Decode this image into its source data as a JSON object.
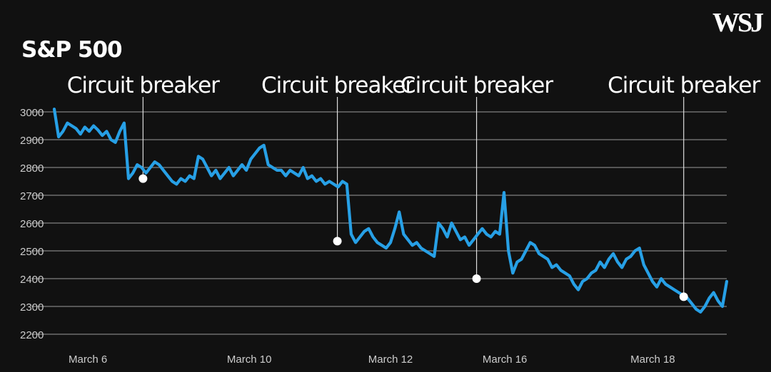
{
  "brand": {
    "logo_text": "WSJ"
  },
  "colors": {
    "background": "#111111",
    "line": "#27a0e6",
    "grid": "#6e6e6e",
    "text": "#ffffff",
    "tick": "#cccccc",
    "marker": "#ffffff"
  },
  "chart_data": {
    "type": "line",
    "title": "S&P 500",
    "xlabel": "",
    "ylabel": "",
    "ylim": [
      2200,
      3000
    ],
    "yticks": [
      3000,
      2900,
      2800,
      2700,
      2600,
      2500,
      2400,
      2300,
      2200
    ],
    "grid": true,
    "x_tick_labels": [
      "March 6",
      "March 10",
      "March 12",
      "March 16",
      "March 18"
    ],
    "series": [
      {
        "values": [
          3010,
          2910,
          2930,
          2960,
          2950,
          2940,
          2920,
          2945,
          2930,
          2950,
          2935,
          2915,
          2930,
          2900,
          2890,
          2930,
          2960,
          2760,
          2780,
          2810,
          2800,
          2780,
          2800,
          2820,
          2810,
          2790,
          2770,
          2750,
          2740,
          2760,
          2750,
          2770,
          2760,
          2840,
          2830,
          2800,
          2770,
          2790,
          2760,
          2780,
          2800,
          2770,
          2790,
          2810,
          2790,
          2830,
          2850,
          2870,
          2880,
          2810,
          2800,
          2790,
          2790,
          2770,
          2790,
          2780,
          2770,
          2800,
          2760,
          2770,
          2750,
          2760,
          2740,
          2750,
          2740,
          2730,
          2750,
          2740,
          2560,
          2530,
          2550,
          2570,
          2580,
          2550,
          2530,
          2520,
          2510,
          2530,
          2580,
          2640,
          2560,
          2540,
          2520,
          2530,
          2510,
          2500,
          2490,
          2480,
          2600,
          2580,
          2550,
          2600,
          2570,
          2540,
          2550,
          2520,
          2540,
          2560,
          2580,
          2560,
          2550,
          2570,
          2560,
          2710,
          2500,
          2420,
          2460,
          2470,
          2500,
          2530,
          2520,
          2490,
          2480,
          2470,
          2440,
          2450,
          2430,
          2420,
          2410,
          2380,
          2360,
          2390,
          2400,
          2420,
          2430,
          2460,
          2440,
          2470,
          2490,
          2460,
          2440,
          2470,
          2480,
          2500,
          2510,
          2450,
          2420,
          2390,
          2370,
          2400,
          2380,
          2370,
          2360,
          2350,
          2340,
          2330,
          2310,
          2290,
          2280,
          2300,
          2330,
          2350,
          2320,
          2300,
          2390
        ]
      }
    ],
    "x_range": [
      0,
      100
    ],
    "x_tick_positions": [
      5,
      29,
      50,
      67,
      89
    ],
    "markers": [
      {
        "label": "Circuit breaker",
        "x": 13.2,
        "y": 2760
      },
      {
        "label": "Circuit breaker",
        "x": 42.1,
        "y": 2535
      },
      {
        "label": "Circuit breaker",
        "x": 62.8,
        "y": 2400
      },
      {
        "label": "Circuit breaker",
        "x": 93.6,
        "y": 2335
      }
    ]
  }
}
